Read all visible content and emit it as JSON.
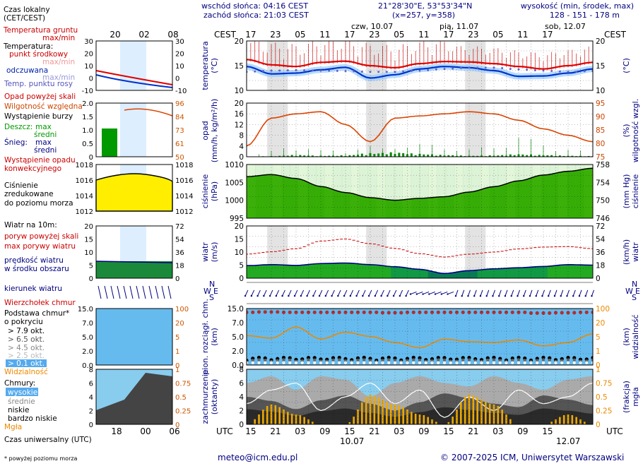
{
  "header": {
    "sunrise": "wschód słońca: 04:16 CEST",
    "sunset": "zachód słońca: 21:03 CEST",
    "coords": "21°28'30\"E, 53°53'34\"N",
    "grid": "(x=257, y=358)",
    "elev_title": "wysokość (min, środek, max)",
    "elev_values": "128 - 151 - 178 m",
    "tz_left": "CEST",
    "tz_right": "CEST",
    "utc_left": "UTC",
    "utc_right": "UTC",
    "day1": "czw, 10.07",
    "day2": "pią, 11.07",
    "day3": "sob, 12.07",
    "date_bottom1": "10.07",
    "date_bottom2": "12.07"
  },
  "legend": {
    "local_time": "Czas lokalny",
    "local_time2": "(CET/CEST)",
    "soil": "Temperatura gruntu",
    "soil_mm": "max/min",
    "temperature": "Temperatura:",
    "temp_mid": "punkt środkowy",
    "temp_mm": "max/min",
    "feels": "odczuwana",
    "feels_mm": "max/min",
    "dew": "Temp. punktu rosy",
    "precip_above": "Opad powyżej skali",
    "humidity": "Wilgotność względna",
    "storm": "Wystąpienie burzy",
    "rain": "Deszcz:",
    "rain_max": "max",
    "rain_mid": "średni",
    "snow": "Śnieg:",
    "snow_max": "max",
    "snow_mid": "średni",
    "conv1": "Wystąpienie opadu",
    "conv2": "konwekcyjnego",
    "pressure1": "Ciśnienie",
    "pressure2": "zredukowane",
    "pressure3": "do poziomu morza",
    "wind10": "Wiatr na 10m:",
    "gust_above": "poryw powyżej skali",
    "gust_max": "max porywy wiatru",
    "wind_mean1": "prędkość wiatru",
    "wind_mean2": "w środku obszaru",
    "wind_dir": "kierunek wiatru",
    "cloud_top": "Wierzchołek chmur",
    "cloud_base1": "Podstawa chmur*",
    "cloud_base2": "o pokryciu",
    "okt79": "> 7.9 okt.",
    "okt65": "> 6.5 okt.",
    "okt45": "> 4.5 okt.",
    "okt25": "> 2.5 okt.",
    "okt01": "> 0.1 okt.",
    "visibility": "Widzialność",
    "clouds": "Chmury:",
    "high": "wysokie",
    "middle": "średnie",
    "low": "niskie",
    "very_low": "bardzo niskie",
    "fog": "Mgła",
    "utc_time": "Czas uniwersalny (UTC)",
    "footnote": "* powyżej poziomu morza"
  },
  "axis_labels": {
    "temp_l1": "temperatura",
    "temp_l2": "(°C)",
    "temp_r": "(°C)",
    "precip_l1": "opad",
    "precip_l2": "(mm/h, kg/m²/h)",
    "precip_r1": "(%)",
    "precip_r2": "wilgotność wzgl.",
    "press_l1": "ciśnienie",
    "press_l2": "(hPa)",
    "press_r1": "(mm Hg)",
    "press_r2": "ciśnienie",
    "wind_l1": "wiatr",
    "wind_l2": "(m/s)",
    "wind_r1": "(km/h)",
    "wind_r2": "wiatr",
    "ceil_l1": "pion. rozciągł. chm.",
    "ceil_l2": "(km)",
    "ceil_r1": "(km)",
    "ceil_r2": "widzialność",
    "cloud_l1": "zachmurzenie",
    "cloud_l2": "(oktanty)",
    "cloud_r1": "(frakcja)",
    "cloud_r2": "mgła",
    "compass_n": "N",
    "compass_s": "S",
    "compass_e": "E",
    "compass_w": "W"
  },
  "footer": {
    "email": "meteo@icm.edu.pl",
    "copyright": "© 2007-2025 ICM, Uniwersytet Warszawski"
  },
  "colors": {
    "temp": "#e00000",
    "feels": "#0033cc",
    "dew": "#6666cc",
    "humidity": "#dd4400",
    "rain": "#008800",
    "pressure_fill": "#33aa00",
    "wind_fill": "#00aa33",
    "gust": "#cc0000",
    "visibility": "#ee8800",
    "sky": "#66bbee",
    "fog": "#eeaa00",
    "night_band": "#cccccc"
  },
  "chart_data": {
    "type": "line",
    "x_top_ticks_cest": [
      "17",
      "23",
      "05",
      "11",
      "17",
      "23",
      "05",
      "11",
      "17",
      "23",
      "05",
      "11",
      "17"
    ],
    "x_bottom_ticks_utc": [
      "15",
      "21",
      "03",
      "09",
      "15",
      "21",
      "03",
      "09",
      "15",
      "21",
      "03",
      "09",
      "15"
    ],
    "legend_top_ticks": [
      "20",
      "02",
      "08"
    ],
    "legend_bottom_ticks": [
      "18",
      "00",
      "06"
    ],
    "x_hours": [
      0,
      6,
      12,
      18,
      24,
      30,
      36,
      42,
      48,
      54,
      60,
      66,
      72,
      78,
      84
    ],
    "temperature": {
      "ylim": [
        8,
        20
      ],
      "yticks": [
        "20",
        "15",
        "10"
      ],
      "mid": [
        15.5,
        14.2,
        13.8,
        14.8,
        15.1,
        14.0,
        13.5,
        14.5,
        15.0,
        14.9,
        14.5,
        13.8,
        13.2,
        14.0,
        14.8
      ],
      "feels": [
        13.8,
        12.0,
        12.2,
        13.0,
        13.6,
        11.0,
        11.8,
        13.2,
        13.8,
        13.5,
        12.8,
        11.4,
        11.5,
        12.2,
        13.2
      ],
      "dew": [
        12.5,
        12.8,
        12.9,
        12.8,
        12.7,
        12.5,
        12.5,
        12.8,
        13.2,
        13.5,
        13.5,
        13.1,
        12.8,
        12.5,
        12.7
      ]
    },
    "precip_humidity": {
      "precip_ylim": [
        0,
        20
      ],
      "precip_yticks": [
        "20",
        "16",
        "12",
        "8",
        "4",
        "0"
      ],
      "hum_yticks": [
        "95",
        "90",
        "85",
        "80",
        "75"
      ],
      "humidity": [
        80,
        93,
        95,
        96,
        90,
        82,
        93,
        94,
        95,
        96,
        95,
        92,
        88,
        85,
        82
      ],
      "rain": [
        0,
        0.2,
        0.5,
        0.3,
        0.4,
        1.0,
        1.2,
        0.8,
        0.5,
        0.3,
        0.4,
        0.7,
        0.5,
        0.3,
        0.2
      ]
    },
    "pressure": {
      "ylim": [
        995,
        1018
      ],
      "yticks": [
        "1010",
        "1005",
        "1000",
        "995"
      ],
      "mmhg_ticks": [
        "758",
        "754",
        "750",
        "746"
      ],
      "values": [
        1012.8,
        1013.7,
        1012.0,
        1008.6,
        1006.0,
        1003.8,
        1002.7,
        1003.5,
        1004.2,
        1006.2,
        1008.5,
        1011.0,
        1013.5,
        1015.1,
        1016.4
      ]
    },
    "wind": {
      "ylim": [
        0,
        20
      ],
      "yticks": [
        "20",
        "15",
        "10",
        "5",
        "0"
      ],
      "kmh_ticks": [
        "72",
        "54",
        "36",
        "18",
        "0"
      ],
      "mean": [
        4.8,
        5.2,
        4.9,
        5.6,
        5.8,
        5.2,
        4.4,
        3.4,
        1.8,
        2.9,
        3.6,
        4.0,
        4.5,
        5.2,
        5.0
      ],
      "gust": [
        9.2,
        10.1,
        11.3,
        14.2,
        15.0,
        13.2,
        11.4,
        9.4,
        8.1,
        9.2,
        10.0,
        11.2,
        11.9,
        12.1,
        11.3
      ]
    },
    "ceiling_visibility": {
      "ylim": [
        0,
        15
      ],
      "yticks": [
        "15.0",
        "7.0",
        "5.0",
        "2.0",
        "0.0"
      ],
      "vis_ticks": [
        "100",
        "20",
        "5",
        "1",
        "0"
      ],
      "top": [
        7.0,
        7.1,
        7.0,
        7.0,
        7.0,
        7.0,
        6.9,
        7.0,
        7.0,
        7.0,
        7.0,
        7.0,
        6.8,
        6.9,
        7.0
      ],
      "visibility": [
        3.4,
        3.1,
        4.4,
        3.0,
        3.8,
        3.3,
        2.6,
        2.0,
        3.0,
        2.7,
        2.6,
        2.9,
        2.2,
        2.6,
        3.6
      ]
    },
    "clouds": {
      "ylim": [
        0,
        8
      ],
      "yticks": [
        "8",
        "6",
        "4",
        "2",
        "0"
      ],
      "frac_ticks": [
        "1",
        "0.75",
        "0.5",
        "0.25",
        "0"
      ],
      "low": [
        4.0,
        3.4,
        2.2,
        3.5,
        4.2,
        3.0,
        2.0,
        3.2,
        4.5,
        3.8,
        3.0,
        2.5,
        4.2,
        3.6,
        2.8
      ],
      "fog": [
        0,
        0.2,
        0.1,
        0,
        0,
        0.3,
        0.2,
        0.1,
        0,
        0.3,
        0.2,
        0,
        0,
        0.1,
        0
      ]
    }
  }
}
